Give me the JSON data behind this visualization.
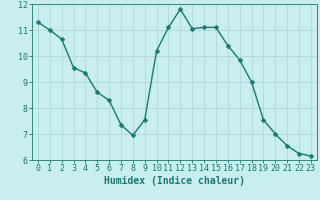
{
  "x": [
    0,
    1,
    2,
    3,
    4,
    5,
    6,
    7,
    8,
    9,
    10,
    11,
    12,
    13,
    14,
    15,
    16,
    17,
    18,
    19,
    20,
    21,
    22,
    23
  ],
  "y": [
    11.3,
    11.0,
    10.65,
    9.55,
    9.35,
    8.6,
    8.3,
    7.35,
    6.95,
    7.55,
    10.2,
    11.1,
    11.8,
    11.05,
    11.1,
    11.1,
    10.4,
    9.85,
    9.0,
    7.55,
    7.0,
    6.55,
    6.25,
    6.15
  ],
  "line_color": "#1a7a6e",
  "marker": "D",
  "markersize": 2.5,
  "linewidth": 1.0,
  "bg_color": "#c8eeee",
  "grid_color": "#b0d8d8",
  "xlabel": "Humidex (Indice chaleur)",
  "xlabel_fontsize": 7,
  "ylim": [
    6,
    12
  ],
  "xlim": [
    -0.5,
    23.5
  ],
  "yticks": [
    6,
    7,
    8,
    9,
    10,
    11,
    12
  ],
  "xticks": [
    0,
    1,
    2,
    3,
    4,
    5,
    6,
    7,
    8,
    9,
    10,
    11,
    12,
    13,
    14,
    15,
    16,
    17,
    18,
    19,
    20,
    21,
    22,
    23
  ],
  "tick_color": "#1a7a6e",
  "tick_fontsize": 6,
  "spine_color": "#1a7a6e"
}
